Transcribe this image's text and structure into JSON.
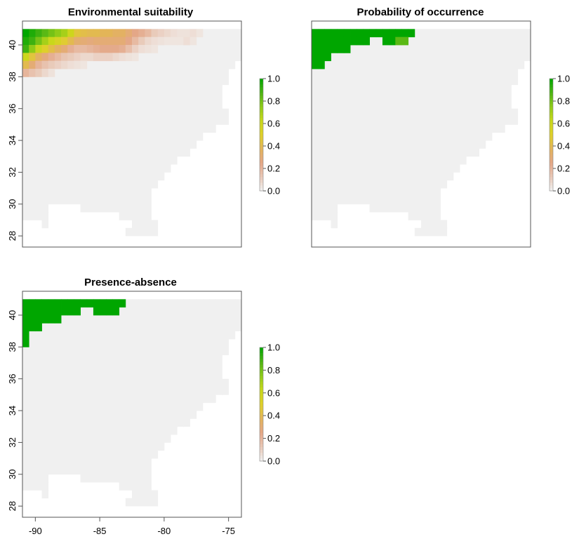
{
  "chart_data": [
    {
      "type": "heatmap",
      "title": "Environmental suitability",
      "value_key": "suitability",
      "legend": {
        "ticks": [
          "0.0",
          "0.2",
          "0.4",
          "0.6",
          "0.8",
          "1.0"
        ],
        "range": [
          0,
          1
        ],
        "placement": "right"
      },
      "x_ticks": [
        "-90",
        "-85",
        "-80",
        "-75"
      ],
      "y_ticks": [
        "28",
        "30",
        "32",
        "34",
        "36",
        "38",
        "40"
      ],
      "xlim": [
        -91,
        -74
      ],
      "ylim": [
        27.3,
        41.5
      ],
      "show_x_tick_labels": false
    },
    {
      "type": "heatmap",
      "title": "Probability of occurrence",
      "value_key": "probability",
      "legend": {
        "ticks": [
          "0.0",
          "0.2",
          "0.4",
          "0.6",
          "0.8",
          "1.0"
        ],
        "range": [
          0,
          1
        ],
        "placement": "right"
      },
      "x_ticks": [
        "-90",
        "-85",
        "-80",
        "-75"
      ],
      "y_ticks": [],
      "xlim": [
        -91,
        -74
      ],
      "ylim": [
        27.3,
        41.5
      ],
      "show_x_tick_labels": false
    },
    {
      "type": "heatmap",
      "title": "Presence-absence",
      "value_key": "presence",
      "legend": {
        "ticks": [
          "0.0",
          "0.2",
          "0.4",
          "0.6",
          "0.8",
          "1.0"
        ],
        "range": [
          0,
          1
        ],
        "placement": "right"
      },
      "x_ticks": [
        "-90",
        "-85",
        "-80",
        "-75"
      ],
      "y_ticks": [
        "28",
        "30",
        "32",
        "34",
        "36",
        "38",
        "40"
      ],
      "xlim": [
        -91,
        -74
      ],
      "ylim": [
        27.3,
        41.5
      ],
      "show_x_tick_labels": true
    }
  ],
  "grid": {
    "cell_deg": 0.5,
    "land_rows": [
      {
        "lat": 40.75,
        "lon_from": -91.0,
        "lon_to": -74.0
      },
      {
        "lat": 40.25,
        "lon_from": -91.0,
        "lon_to": -74.0
      },
      {
        "lat": 39.75,
        "lon_from": -91.0,
        "lon_to": -74.0
      },
      {
        "lat": 39.25,
        "lon_from": -91.0,
        "lon_to": -74.0
      },
      {
        "lat": 38.75,
        "lon_from": -91.0,
        "lon_to": -74.5
      },
      {
        "lat": 38.25,
        "lon_from": -91.0,
        "lon_to": -75.0
      },
      {
        "lat": 37.75,
        "lon_from": -91.0,
        "lon_to": -75.0
      },
      {
        "lat": 37.25,
        "lon_from": -91.0,
        "lon_to": -75.5
      },
      {
        "lat": 36.75,
        "lon_from": -91.0,
        "lon_to": -75.5
      },
      {
        "lat": 36.25,
        "lon_from": -91.0,
        "lon_to": -75.5
      },
      {
        "lat": 35.75,
        "lon_from": -91.0,
        "lon_to": -75.0
      },
      {
        "lat": 35.25,
        "lon_from": -91.0,
        "lon_to": -75.0
      },
      {
        "lat": 34.75,
        "lon_from": -91.0,
        "lon_to": -76.0
      },
      {
        "lat": 34.25,
        "lon_from": -91.0,
        "lon_to": -77.0
      },
      {
        "lat": 33.75,
        "lon_from": -91.0,
        "lon_to": -77.5
      },
      {
        "lat": 33.25,
        "lon_from": -91.0,
        "lon_to": -78.0
      },
      {
        "lat": 32.75,
        "lon_from": -91.0,
        "lon_to": -79.0
      },
      {
        "lat": 32.25,
        "lon_from": -91.0,
        "lon_to": -79.5
      },
      {
        "lat": 31.75,
        "lon_from": -91.0,
        "lon_to": -80.0
      },
      {
        "lat": 31.25,
        "lon_from": -91.0,
        "lon_to": -80.5
      },
      {
        "lat": 30.75,
        "lon_from": -91.0,
        "lon_to": -81.0
      },
      {
        "lat": 30.25,
        "lon_from": -91.0,
        "lon_to": -81.0
      },
      {
        "lat": 29.75,
        "lon_from": -91.0,
        "lon_to": -81.0,
        "gaps": [
          [
            -89.0,
            -86.5
          ]
        ]
      },
      {
        "lat": 29.25,
        "lon_from": -91.0,
        "lon_to": -81.0,
        "gaps": [
          [
            -89.0,
            -83.5
          ]
        ]
      },
      {
        "lat": 28.75,
        "lon_from": -91.0,
        "lon_to": -80.5,
        "gaps": [
          [
            -91.0,
            -89.0
          ],
          [
            -89.0,
            -82.5
          ]
        ]
      },
      {
        "lat": 28.25,
        "lon_from": -83.0,
        "lon_to": -80.5
      }
    ],
    "extra_land": [
      {
        "lat": 28.75,
        "lon_from": -89.5,
        "lon_to": -89.0
      }
    ],
    "suitability": [
      {
        "lat": 40.75,
        "values": [
          1.0,
          0.95,
          0.9,
          0.85,
          0.8,
          0.75,
          0.7,
          0.6,
          0.45,
          0.42,
          0.4,
          0.4,
          0.38,
          0.38,
          0.35,
          0.35,
          0.3,
          0.25,
          0.22,
          0.18,
          0.12,
          0.1,
          0.08,
          0.06,
          0.05,
          0.05,
          0.06,
          0.04
        ]
      },
      {
        "lat": 40.25,
        "values": [
          0.95,
          0.9,
          0.8,
          0.7,
          0.62,
          0.55,
          0.48,
          0.4,
          0.32,
          0.3,
          0.28,
          0.3,
          0.3,
          0.3,
          0.3,
          0.3,
          0.25,
          0.18,
          0.12,
          0.08,
          0.06,
          0.05,
          0.04,
          0.04,
          0.04,
          0.06,
          0.04
        ]
      },
      {
        "lat": 39.75,
        "values": [
          0.9,
          0.75,
          0.6,
          0.5,
          0.42,
          0.35,
          0.3,
          0.22,
          0.18,
          0.18,
          0.2,
          0.22,
          0.24,
          0.24,
          0.24,
          0.22,
          0.16,
          0.1,
          0.06,
          0.05,
          0.04
        ]
      },
      {
        "lat": 39.25,
        "values": [
          0.6,
          0.45,
          0.35,
          0.28,
          0.22,
          0.18,
          0.14,
          0.12,
          0.1,
          0.08,
          0.08,
          0.1,
          0.1,
          0.1,
          0.08,
          0.06,
          0.05,
          0.04
        ]
      },
      {
        "lat": 38.75,
        "values": [
          0.4,
          0.3,
          0.2,
          0.15,
          0.12,
          0.1,
          0.08,
          0.06,
          0.05,
          0.04
        ]
      },
      {
        "lat": 38.25,
        "values": [
          0.2,
          0.15,
          0.12,
          0.08,
          0.05
        ]
      }
    ],
    "probability": [
      {
        "lat": 40.75,
        "lon_from": -91.0,
        "lon_to": -83.0,
        "value": 1.0
      },
      {
        "lat": 40.25,
        "lon_from": -91.0,
        "lon_to": -86.5,
        "value": 1.0
      },
      {
        "lat": 40.25,
        "lon_from": -85.5,
        "lon_to": -84.5,
        "value": 1.0
      },
      {
        "lat": 40.25,
        "lon_from": -84.5,
        "lon_to": -83.5,
        "value": 0.85
      },
      {
        "lat": 39.75,
        "lon_from": -91.0,
        "lon_to": -88.0,
        "value": 1.0
      },
      {
        "lat": 39.25,
        "lon_from": -91.0,
        "lon_to": -89.5,
        "value": 1.0
      },
      {
        "lat": 38.75,
        "lon_from": -91.0,
        "lon_to": -90.0,
        "value": 1.0
      }
    ],
    "presence": [
      {
        "lat": 40.75,
        "lon_from": -91.0,
        "lon_to": -83.0,
        "value": 1.0
      },
      {
        "lat": 40.25,
        "lon_from": -91.0,
        "lon_to": -86.5,
        "value": 1.0
      },
      {
        "lat": 40.25,
        "lon_from": -85.5,
        "lon_to": -83.5,
        "value": 1.0
      },
      {
        "lat": 39.75,
        "lon_from": -91.0,
        "lon_to": -88.0,
        "value": 1.0
      },
      {
        "lat": 39.25,
        "lon_from": -91.0,
        "lon_to": -89.5,
        "value": 1.0
      },
      {
        "lat": 38.75,
        "lon_from": -91.0,
        "lon_to": -90.5,
        "value": 1.0
      },
      {
        "lat": 38.25,
        "lon_from": -91.0,
        "lon_to": -91.0,
        "value": 1.0
      }
    ]
  },
  "colors": {
    "background_cell": "#f0f0f0",
    "ramp": [
      "#f2f2f2",
      "#e9c9b8",
      "#e4a787",
      "#e3b45a",
      "#dfd02a",
      "#c8d81a",
      "#8fcb18",
      "#4db414",
      "#00a600"
    ],
    "frame": "#555555",
    "text": "#000000"
  }
}
